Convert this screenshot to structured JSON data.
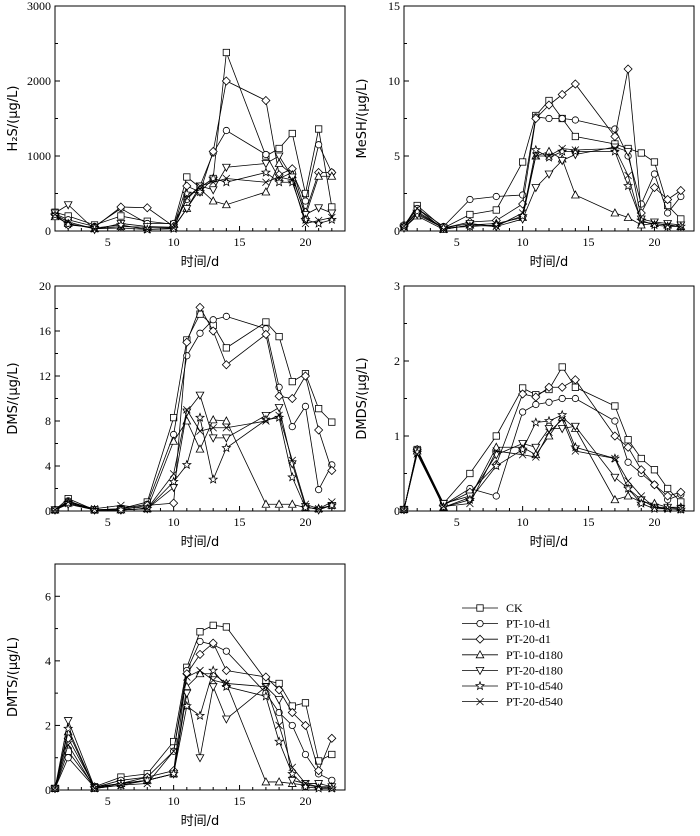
{
  "chart_data": [
    {
      "type": "line",
      "ylabel": "H₂S/(μg/L)",
      "xlabel": "时间/d",
      "xlim": [
        1,
        23
      ],
      "ylim": [
        0,
        3000
      ],
      "xticks": [
        5,
        10,
        15,
        20
      ],
      "yticks": [
        0,
        1000,
        2000,
        3000
      ],
      "x": [
        1,
        2,
        4,
        6,
        8,
        10,
        11,
        12,
        13,
        14,
        17,
        18,
        19,
        20,
        21,
        22
      ],
      "series": [
        {
          "name": "CK",
          "values": [
            250,
            200,
            80,
            200,
            130,
            90,
            720,
            580,
            700,
            2380,
            1000,
            1100,
            1300,
            500,
            1360,
            320
          ]
        },
        {
          "name": "PT-10-d1",
          "values": [
            230,
            150,
            60,
            300,
            100,
            100,
            420,
            600,
            1040,
            1340,
            1020,
            700,
            780,
            400,
            1150,
            780
          ]
        },
        {
          "name": "PT-20-d1",
          "values": [
            220,
            80,
            50,
            320,
            310,
            60,
            600,
            520,
            1060,
            2000,
            1740,
            750,
            830,
            250,
            780,
            780
          ]
        },
        {
          "name": "PT-10-d180",
          "values": [
            190,
            100,
            30,
            60,
            50,
            40,
            300,
            560,
            400,
            350,
            520,
            900,
            750,
            200,
            730,
            730
          ]
        },
        {
          "name": "PT-20-d180",
          "values": [
            240,
            350,
            20,
            100,
            60,
            50,
            300,
            600,
            550,
            850,
            900,
            1000,
            720,
            220,
            310,
            240
          ]
        },
        {
          "name": "PT-10-d540",
          "values": [
            210,
            90,
            40,
            80,
            20,
            30,
            500,
            520,
            700,
            650,
            780,
            650,
            650,
            150,
            100,
            150
          ]
        },
        {
          "name": "PT-20-d540",
          "values": [
            220,
            120,
            30,
            40,
            20,
            40,
            440,
            600,
            650,
            700,
            650,
            720,
            680,
            100,
            140,
            180
          ]
        }
      ]
    },
    {
      "type": "line",
      "ylabel": "MeSH/(μg/L)",
      "xlabel": "时间/d",
      "xlim": [
        1,
        23
      ],
      "ylim": [
        0,
        15
      ],
      "xticks": [
        5,
        10,
        15,
        20
      ],
      "yticks": [
        0,
        5,
        10,
        15
      ],
      "x": [
        1,
        2,
        4,
        6,
        8,
        10,
        11,
        12,
        13,
        14,
        17,
        18,
        19,
        20,
        21,
        22
      ],
      "series": [
        {
          "name": "CK",
          "values": [
            0.3,
            1.7,
            0.2,
            1.1,
            1.4,
            4.6,
            7.7,
            8.7,
            7.5,
            6.3,
            5.8,
            5.5,
            5.2,
            4.6,
            1.7,
            0.8
          ]
        },
        {
          "name": "PT-10-d1",
          "values": [
            0.4,
            1.5,
            0.3,
            2.1,
            2.3,
            2.4,
            7.6,
            7.5,
            7.5,
            7.4,
            6.8,
            5.0,
            1.8,
            3.8,
            1.2,
            2.3
          ]
        },
        {
          "name": "PT-20-d1",
          "values": [
            0.3,
            1.2,
            0.2,
            0.6,
            0.7,
            1.8,
            7.5,
            8.4,
            9.1,
            9.8,
            6.3,
            10.8,
            1.2,
            2.9,
            2.1,
            2.7
          ]
        },
        {
          "name": "PT-10-d180",
          "values": [
            0.2,
            1.0,
            0.1,
            0.4,
            0.5,
            0.9,
            5.0,
            5.3,
            4.8,
            2.4,
            1.2,
            0.9,
            0.4,
            0.5,
            0.4,
            0.3
          ]
        },
        {
          "name": "PT-20-d180",
          "values": [
            0.2,
            1.1,
            0.2,
            0.5,
            0.3,
            0.8,
            2.9,
            3.8,
            4.7,
            5.1,
            5.6,
            5.3,
            0.8,
            0.6,
            0.5,
            0.4
          ]
        },
        {
          "name": "PT-10-d540",
          "values": [
            0.3,
            1.3,
            0.2,
            0.3,
            0.4,
            1.0,
            5.4,
            4.9,
            5.3,
            5.3,
            5.3,
            3.0,
            0.7,
            0.4,
            0.3,
            0.3
          ]
        },
        {
          "name": "PT-20-d540",
          "values": [
            0.3,
            1.5,
            0.1,
            0.4,
            0.3,
            1.2,
            5.0,
            5.0,
            5.5,
            5.4,
            5.5,
            3.7,
            0.6,
            0.5,
            0.4,
            0.3
          ]
        }
      ]
    },
    {
      "type": "line",
      "ylabel": "DMS/(μg/L)",
      "xlabel": "时间/d",
      "xlim": [
        1,
        23
      ],
      "ylim": [
        0,
        20
      ],
      "xticks": [
        5,
        10,
        15,
        20
      ],
      "yticks": [
        0,
        4,
        8,
        12,
        16,
        20
      ],
      "x": [
        1,
        2,
        4,
        6,
        8,
        10,
        11,
        12,
        13,
        14,
        17,
        18,
        19,
        20,
        21,
        22
      ],
      "series": [
        {
          "name": "CK",
          "values": [
            0.1,
            1.1,
            0.1,
            0.2,
            0.8,
            8.3,
            15.2,
            17.5,
            16.5,
            14.5,
            16.8,
            15.5,
            11.5,
            12.2,
            9.1,
            7.9
          ]
        },
        {
          "name": "PT-10-d1",
          "values": [
            0.1,
            0.9,
            0.1,
            0.2,
            0.6,
            6.8,
            13.8,
            15.8,
            17.0,
            17.3,
            16.2,
            11.0,
            7.5,
            9.3,
            1.9,
            4.1
          ]
        },
        {
          "name": "PT-20-d1",
          "values": [
            0.1,
            0.8,
            0.1,
            0.1,
            0.5,
            0.7,
            15.0,
            18.1,
            16.0,
            13.0,
            15.7,
            10.2,
            10.0,
            12.0,
            7.2,
            3.6
          ]
        },
        {
          "name": "PT-10-d180",
          "values": [
            0.1,
            0.7,
            0.1,
            0.1,
            0.2,
            6.2,
            8.0,
            5.5,
            8.1,
            8.0,
            0.6,
            0.6,
            0.6,
            0.3,
            0.2,
            0.5
          ]
        },
        {
          "name": "PT-20-d180",
          "values": [
            0.1,
            0.6,
            0.1,
            0.1,
            0.2,
            2.1,
            8.8,
            10.3,
            6.5,
            6.5,
            8.5,
            9.2,
            4.2,
            0.4,
            0.1,
            0.5
          ]
        },
        {
          "name": "PT-10-d540",
          "values": [
            0.1,
            0.7,
            0.1,
            0.1,
            0.2,
            2.6,
            4.1,
            8.3,
            2.8,
            5.6,
            8.1,
            8.3,
            3.0,
            0.3,
            0.2,
            0.5
          ]
        },
        {
          "name": "PT-20-d540",
          "values": [
            0.1,
            0.8,
            0.2,
            0.5,
            0.2,
            3.3,
            9.0,
            7.1,
            7.4,
            7.4,
            8.0,
            8.5,
            4.5,
            0.6,
            0.2,
            0.8
          ]
        }
      ]
    },
    {
      "type": "line",
      "ylabel": "DMDS/(μg/L)",
      "xlabel": "时间/d",
      "xlim": [
        1,
        23
      ],
      "ylim": [
        0,
        3
      ],
      "xticks": [
        5,
        10,
        15,
        20
      ],
      "yticks": [
        0,
        1,
        2,
        3
      ],
      "x": [
        1,
        2,
        4,
        6,
        8,
        10,
        11,
        12,
        13,
        14,
        17,
        18,
        19,
        20,
        21,
        22
      ],
      "series": [
        {
          "name": "CK",
          "values": [
            0.02,
            0.82,
            0.1,
            0.5,
            1.0,
            1.64,
            1.55,
            1.62,
            1.92,
            1.65,
            1.4,
            0.95,
            0.7,
            0.55,
            0.3,
            0.12
          ]
        },
        {
          "name": "PT-10-d1",
          "values": [
            0.02,
            0.8,
            0.08,
            0.3,
            0.2,
            1.32,
            1.42,
            1.45,
            1.5,
            1.5,
            1.2,
            0.65,
            0.5,
            0.35,
            0.15,
            0.22
          ]
        },
        {
          "name": "PT-20-d1",
          "values": [
            0.02,
            0.82,
            0.08,
            0.25,
            0.62,
            1.56,
            1.52,
            1.65,
            1.65,
            1.75,
            1.0,
            0.85,
            0.55,
            0.35,
            0.2,
            0.25
          ]
        },
        {
          "name": "PT-10-d180",
          "values": [
            0.02,
            0.8,
            0.05,
            0.18,
            0.85,
            0.85,
            0.75,
            1.0,
            1.25,
            1.1,
            0.15,
            0.2,
            0.12,
            0.1,
            0.05,
            0.05
          ]
        },
        {
          "name": "PT-20-d180",
          "values": [
            0.02,
            0.8,
            0.1,
            0.2,
            0.75,
            0.9,
            0.85,
            1.1,
            1.1,
            1.13,
            0.45,
            0.3,
            0.15,
            0.05,
            0.05,
            0.03
          ]
        },
        {
          "name": "PT-10-d540",
          "values": [
            0.02,
            0.78,
            0.05,
            0.15,
            0.6,
            0.82,
            1.18,
            1.2,
            1.28,
            0.85,
            0.7,
            0.3,
            0.1,
            0.03,
            0.03,
            0.02
          ]
        },
        {
          "name": "PT-20-d540",
          "values": [
            0.02,
            0.76,
            0.06,
            0.1,
            0.8,
            0.75,
            0.72,
            1.05,
            1.22,
            0.8,
            0.7,
            0.4,
            0.2,
            0.05,
            0.03,
            0.02
          ]
        }
      ]
    },
    {
      "type": "line",
      "ylabel": "DMTS/(μg/L)",
      "xlabel": "时间/d",
      "xlim": [
        1,
        23
      ],
      "ylim": [
        0,
        7
      ],
      "xticks": [
        5,
        10,
        15,
        20
      ],
      "yticks": [
        0,
        2,
        4,
        6
      ],
      "x": [
        1,
        2,
        4,
        6,
        8,
        10,
        11,
        12,
        13,
        14,
        17,
        18,
        19,
        20,
        21,
        22
      ],
      "series": [
        {
          "name": "CK",
          "values": [
            0.05,
            1.2,
            0.1,
            0.4,
            0.5,
            1.5,
            3.8,
            4.9,
            5.1,
            5.05,
            3.4,
            3.3,
            2.6,
            2.7,
            0.9,
            1.1
          ]
        },
        {
          "name": "PT-10-d1",
          "values": [
            0.05,
            1.0,
            0.08,
            0.3,
            0.4,
            1.2,
            3.7,
            4.6,
            4.5,
            4.3,
            3.0,
            2.4,
            2.0,
            1.1,
            0.5,
            0.3
          ]
        },
        {
          "name": "PT-20-d1",
          "values": [
            0.05,
            1.6,
            0.1,
            0.2,
            0.4,
            0.6,
            3.6,
            4.2,
            4.55,
            3.7,
            3.5,
            3.1,
            2.4,
            2.0,
            0.6,
            1.6
          ]
        },
        {
          "name": "PT-10-d180",
          "values": [
            0.05,
            1.8,
            0.05,
            0.2,
            0.3,
            0.5,
            3.2,
            3.6,
            3.6,
            3.3,
            0.25,
            0.25,
            0.2,
            0.15,
            0.1,
            0.1
          ]
        },
        {
          "name": "PT-20-d180",
          "values": [
            0.05,
            2.15,
            0.08,
            0.2,
            0.3,
            0.5,
            3.0,
            1.0,
            3.2,
            2.2,
            3.2,
            2.8,
            0.3,
            0.2,
            0.2,
            0.1
          ]
        },
        {
          "name": "PT-10-d540",
          "values": [
            0.05,
            1.9,
            0.05,
            0.15,
            0.3,
            0.5,
            2.6,
            2.3,
            3.7,
            3.2,
            2.9,
            1.5,
            0.5,
            0.1,
            0.05,
            0.05
          ]
        },
        {
          "name": "PT-20-d540",
          "values": [
            0.05,
            1.4,
            0.05,
            0.15,
            0.2,
            1.2,
            3.5,
            3.7,
            3.4,
            3.3,
            3.2,
            2.0,
            0.7,
            0.2,
            0.1,
            0.05
          ]
        }
      ]
    }
  ],
  "legend": {
    "placement": "bottom-right",
    "entries": [
      "CK",
      "PT-10-d1",
      "PT-20-d1",
      "PT-10-d180",
      "PT-20-d180",
      "PT-10-d540",
      "PT-20-d540"
    ],
    "markers": [
      "square",
      "circle",
      "diamond",
      "triangle-up",
      "triangle-down",
      "star",
      "cross"
    ]
  }
}
